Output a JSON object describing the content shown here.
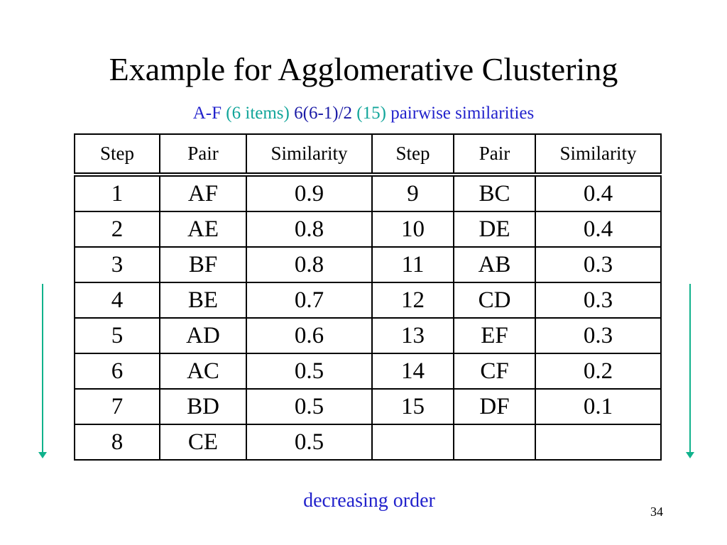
{
  "title": "Example for Agglomerative Clustering",
  "subtitle": {
    "part1": "A-F",
    "part2": "(6 items)",
    "part3": "6(6-1)/2",
    "part4": "(15)",
    "part5": "pairwise similarities"
  },
  "table": {
    "headers": [
      "Step",
      "Pair",
      "Similarity",
      "Step",
      "Pair",
      "Similarity"
    ],
    "rows": [
      [
        "1",
        "AF",
        "0.9",
        "9",
        "BC",
        "0.4"
      ],
      [
        "2",
        "AE",
        "0.8",
        "10",
        "DE",
        "0.4"
      ],
      [
        "3",
        "BF",
        "0.8",
        "11",
        "AB",
        "0.3"
      ],
      [
        "4",
        "BE",
        "0.7",
        "12",
        "CD",
        "0.3"
      ],
      [
        "5",
        "AD",
        "0.6",
        "13",
        "EF",
        "0.3"
      ],
      [
        "6",
        "AC",
        "0.5",
        "14",
        "CF",
        "0.2"
      ],
      [
        "7",
        "BD",
        "0.5",
        "15",
        "DF",
        "0.1"
      ],
      [
        "8",
        "CE",
        "0.5",
        "",
        "",
        ""
      ]
    ]
  },
  "footer": "decreasing order",
  "page_number": "34",
  "colors": {
    "subtitle_blue": "#2222cc",
    "subtitle_green": "#11a59a",
    "arrow": "#10b28c"
  }
}
